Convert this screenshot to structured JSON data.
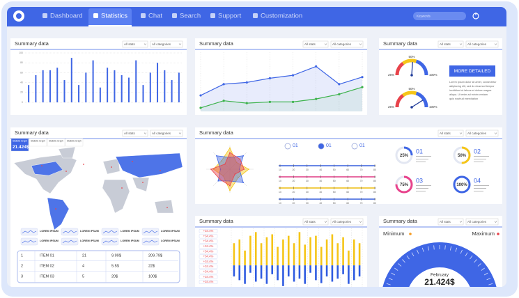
{
  "nav": {
    "items": [
      "Dashboard",
      "Statistics",
      "Chat",
      "Search",
      "Support",
      "Customization"
    ],
    "search_placeholder": "Keywords"
  },
  "panel_title": "Summary data",
  "filters": {
    "stats": "All stats",
    "categories": "All categories"
  },
  "bar_panel": {
    "ylim": [
      0,
      100
    ],
    "yticks": [
      0,
      20,
      40,
      60,
      80,
      100
    ],
    "color": "#3f66e5",
    "values": [
      35,
      55,
      65,
      65,
      70,
      45,
      90,
      35,
      60,
      85,
      30,
      70,
      65,
      55,
      50,
      85,
      35,
      60,
      80,
      65,
      45,
      60
    ]
  },
  "line_panel": {
    "ylim": [
      0,
      100
    ],
    "series": [
      {
        "color": "#3f66e5",
        "values": [
          27,
          46,
          49,
          56,
          61,
          76,
          46,
          58
        ]
      },
      {
        "color": "#3bb24a",
        "values": [
          6,
          18,
          14,
          16,
          16,
          21,
          29,
          41
        ]
      }
    ]
  },
  "gauge_panel": {
    "gauges": [
      {
        "labels": [
          "25%",
          "50%",
          "100%"
        ],
        "value": 52
      },
      {
        "labels": [
          "25%",
          "50%",
          "100%"
        ],
        "value": 82
      }
    ],
    "button": "MORE DETAILED",
    "text": [
      "Lorem ipsum dolor sit amet, consectetur",
      "adipiscing elit, sed do eiusmod tempor",
      "incididunt ut labore et dolore magna",
      "aliqua. Ut enim ad minim veniam",
      "quis nostrud exercitation"
    ]
  },
  "map_panel": {
    "tabs": [
      {
        "caption": "Statistic Graph",
        "value": "21.424$"
      },
      {
        "caption": "Statistic Graph"
      },
      {
        "caption": "Statistic Graph"
      },
      {
        "caption": "Statistic Graph"
      }
    ],
    "legend_items": [
      "LOREM IPSUM",
      "LOREM IPSUM",
      "LOREM IPSUM",
      "LOREM IPSUM",
      "LOREM IPSUM",
      "LOREM IPSUM",
      "LOREM IPSUM",
      "LOREM IPSUM"
    ],
    "table": {
      "rows": [
        [
          "1",
          "ITEM 01",
          "21",
          "9.99$",
          "209.79$"
        ],
        [
          "2",
          "ITEM 02",
          "4",
          "5.5$",
          "22$"
        ],
        [
          "3",
          "ITEM 03",
          "5",
          "20$",
          "100$"
        ]
      ]
    }
  },
  "radar": {
    "max": 10,
    "series": [
      {
        "color": "#f5c518",
        "values": [
          9,
          4,
          8,
          5,
          9,
          4,
          7,
          5
        ]
      },
      {
        "color": "#3f66e5",
        "values": [
          5,
          8,
          4,
          8,
          5,
          7,
          4,
          8
        ]
      },
      {
        "color": "#e8434b",
        "values": [
          7,
          6,
          6,
          3,
          7,
          6,
          8,
          3
        ]
      }
    ]
  },
  "radios": [
    "01",
    "01",
    "01"
  ],
  "sliders": {
    "ticks": [
      10,
      20,
      30,
      40,
      50,
      60,
      70,
      80
    ],
    "items": [
      {
        "color": "#3f66e5",
        "value": 80
      },
      {
        "color": "#e8438c",
        "value": 80
      },
      {
        "color": "#f5c518",
        "value": 80
      },
      {
        "color": "#3f66e5",
        "value": 80
      }
    ]
  },
  "rings": [
    {
      "value": 25,
      "label": "25%",
      "number": "01",
      "color": "#3f66e5"
    },
    {
      "value": 50,
      "label": "50%",
      "number": "02",
      "color": "#f5c518"
    },
    {
      "value": 75,
      "label": "75%",
      "number": "03",
      "color": "#e8438c"
    },
    {
      "value": 100,
      "label": "100%",
      "number": "04",
      "color": "#3f66e5"
    }
  ],
  "pn_panel": {
    "labels": [
      "+34.4%",
      "+34.4%",
      "+34.4%",
      "+34.4%",
      "+34.4%",
      "+34.4%",
      "+34.4%",
      "+34.4%",
      "+34.4%",
      "+34.4%",
      "+34.4%"
    ],
    "ylim": [
      -30,
      50
    ],
    "series": [
      {
        "color": "#f5c518",
        "values": [
          30,
          35,
          20,
          40,
          45,
          30,
          38,
          42,
          25,
          35,
          40,
          30,
          45,
          28,
          38,
          40,
          25,
          35,
          42,
          30,
          38,
          20,
          35,
          30
        ]
      },
      {
        "color": "#2f5be0",
        "values": [
          -15,
          -20,
          -25,
          -10,
          -22,
          -18,
          -25,
          -12,
          -20,
          -28,
          -15,
          -22,
          -18,
          -25,
          -10,
          -20,
          -24,
          -15,
          -22,
          -18,
          -12,
          -25,
          -20,
          -15
        ]
      }
    ]
  },
  "big_gauge": {
    "min_label": "Minimum",
    "max_label": "Maximum",
    "month": "February",
    "value": "21.424$"
  }
}
